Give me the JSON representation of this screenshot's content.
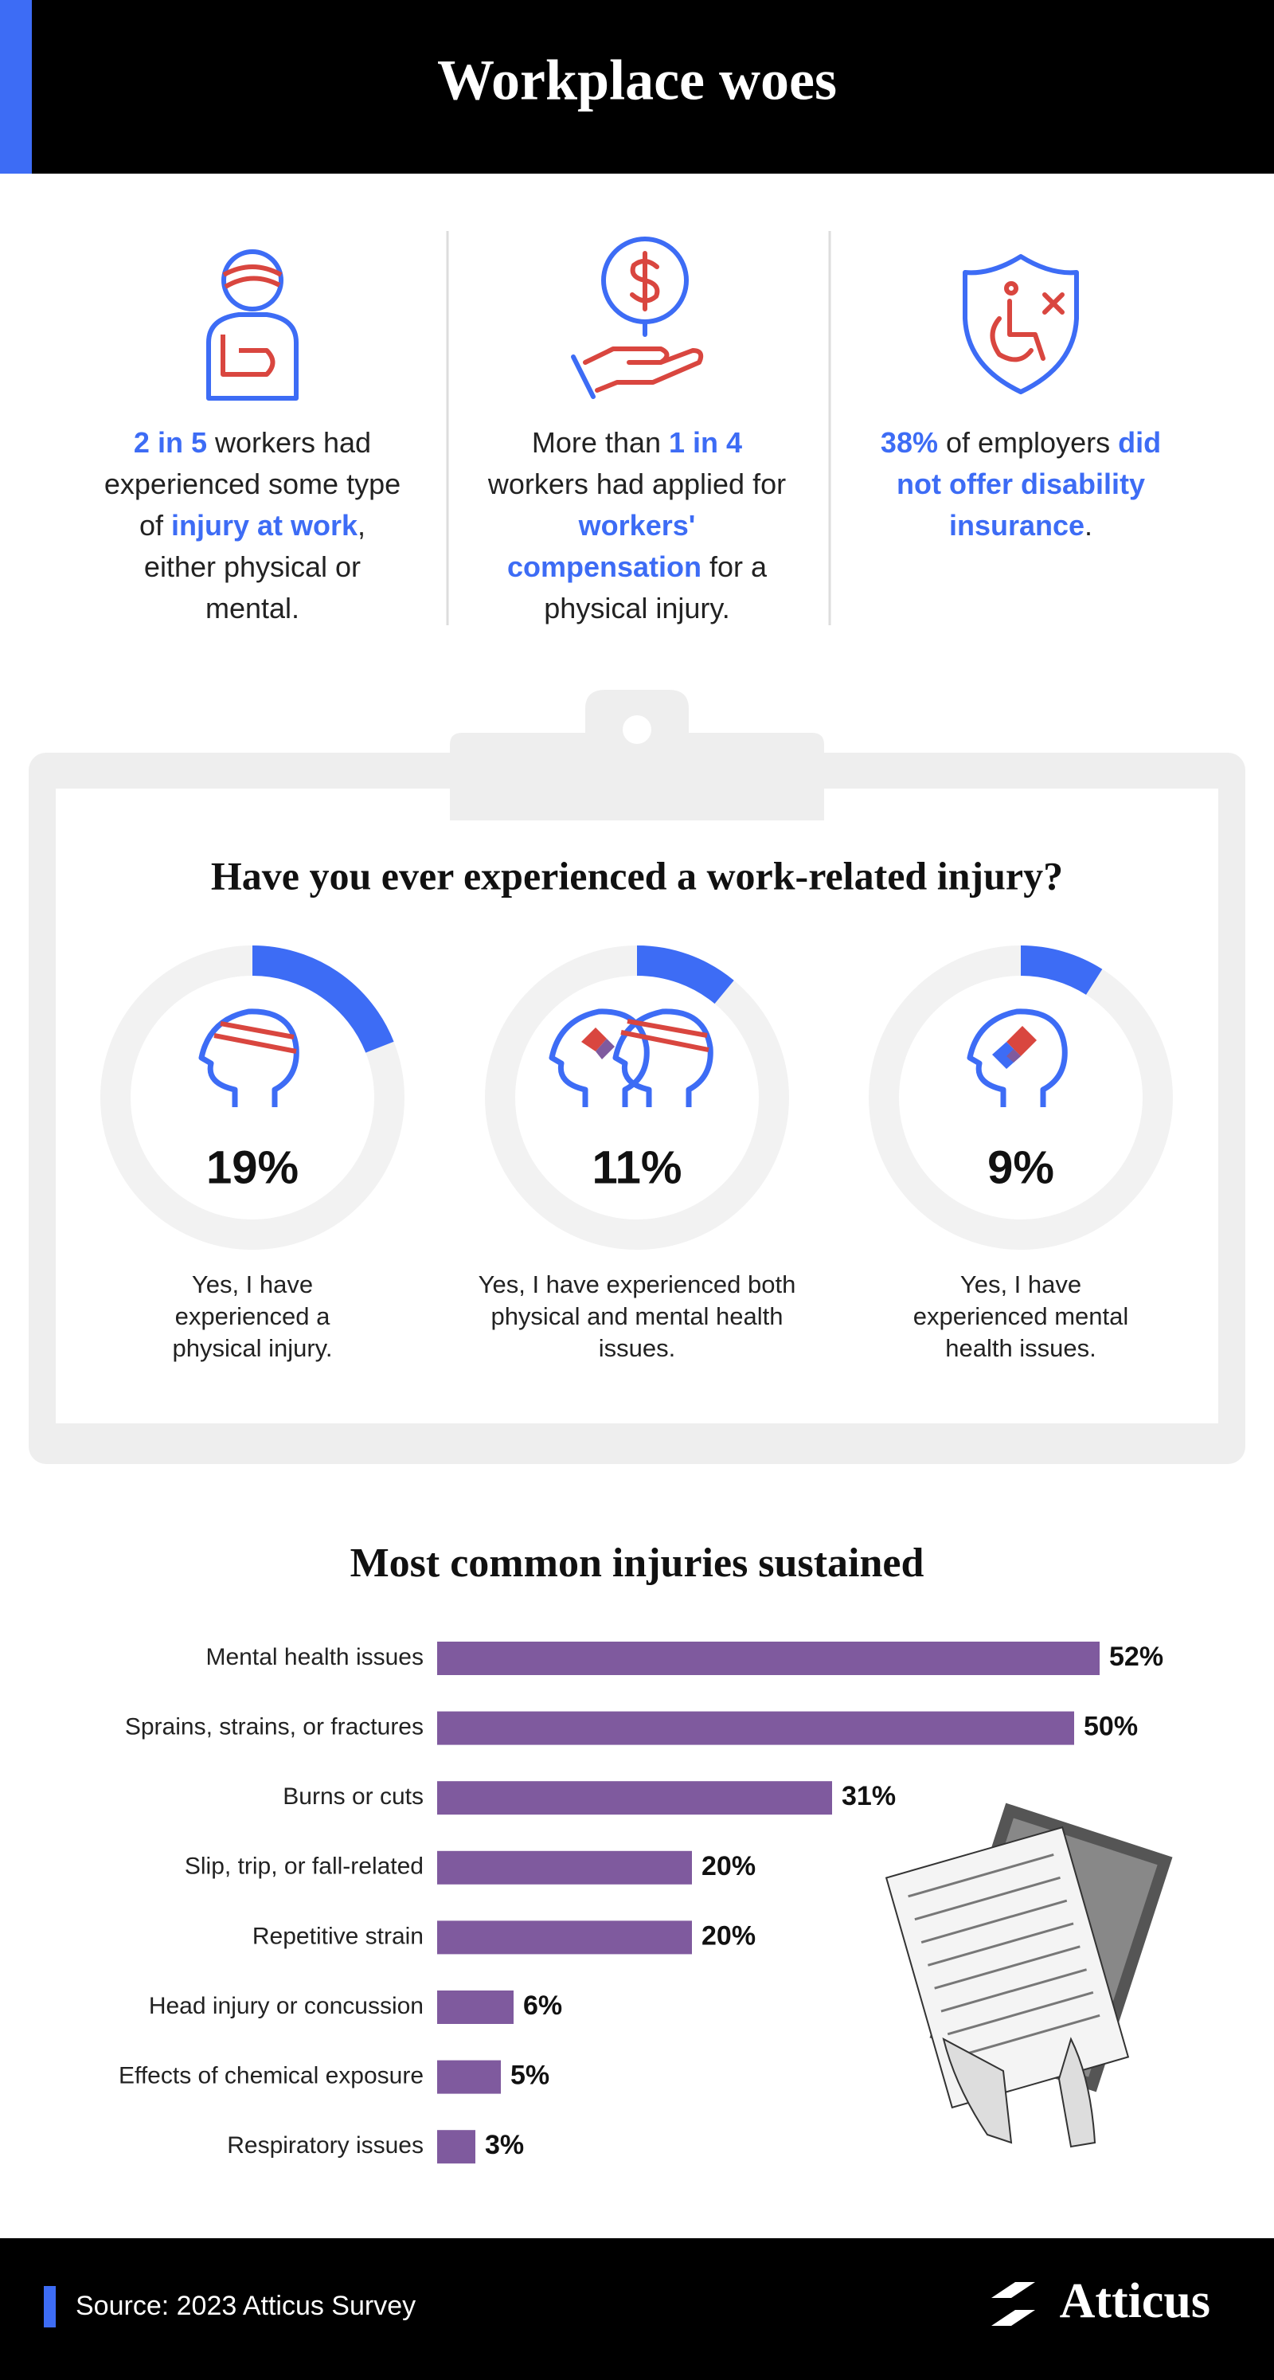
{
  "header": {
    "title": "Workplace woes"
  },
  "stats": [
    {
      "segments": [
        {
          "text": "2 in 5",
          "emphasis": true
        },
        {
          "text": " workers had experienced some type of "
        },
        {
          "text": "injury at work",
          "emphasis": true
        },
        {
          "text": ", either physical or mental."
        }
      ]
    },
    {
      "segments": [
        {
          "text": "More than "
        },
        {
          "text": "1 in 4",
          "emphasis": true
        },
        {
          "text": " workers had applied for "
        },
        {
          "text": "workers' compensation",
          "emphasis": true
        },
        {
          "text": " for a physical injury."
        }
      ]
    },
    {
      "segments": [
        {
          "text": "38%",
          "emphasis": true
        },
        {
          "text": " of employers "
        },
        {
          "text": "did not offer disability insurance",
          "emphasis": true
        },
        {
          "text": "."
        }
      ]
    }
  ],
  "chart_data": [
    {
      "type": "donut",
      "title": "Have you ever experienced a work-related injury?",
      "categories": [
        "Yes, I have experienced a physical injury.",
        "Yes, I have experienced both physical and mental health issues.",
        "Yes, I have experienced mental health issues."
      ],
      "values": [
        19,
        11,
        9
      ],
      "value_labels": [
        "19%",
        "11%",
        "9%"
      ],
      "ylim": [
        0,
        100
      ],
      "color": "#3d6cf5",
      "track_color": "#f2f2f2"
    },
    {
      "type": "bar",
      "orientation": "horizontal",
      "title": "Most common injuries sustained",
      "categories": [
        "Mental health issues",
        "Sprains, strains, or fractures",
        "Burns or cuts",
        "Slip, trip, or fall-related",
        "Repetitive strain",
        "Head injury or concussion",
        "Effects of chemical exposure",
        "Respiratory issues"
      ],
      "values": [
        52,
        50,
        31,
        20,
        20,
        6,
        5,
        3
      ],
      "value_labels": [
        "52%",
        "50%",
        "31%",
        "20%",
        "20%",
        "6%",
        "5%",
        "3%"
      ],
      "xlim": [
        0,
        60
      ],
      "color": "#7f5a9e"
    }
  ],
  "footer": {
    "source": "Source: 2023 Atticus Survey",
    "logo": "Atticus"
  }
}
